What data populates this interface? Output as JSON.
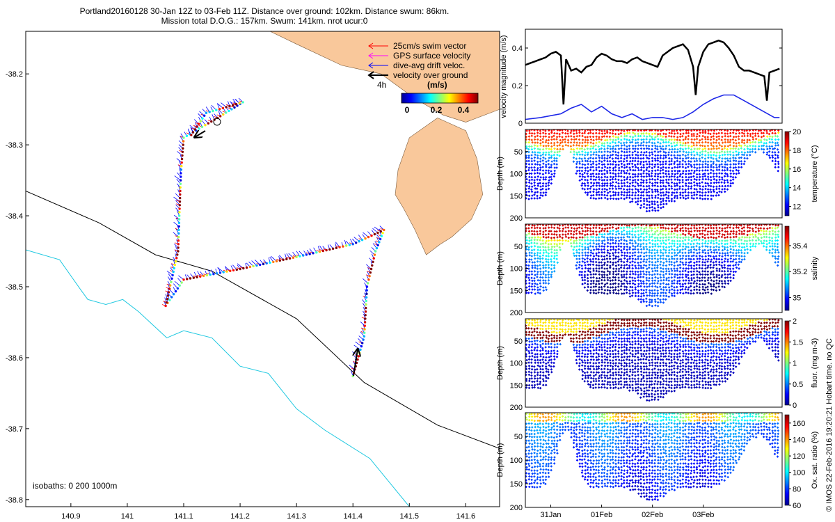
{
  "title_line1": "Portland20160128 30-Jan 12Z to 03-Feb 11Z. Distance over ground: 102km. Distance swum: 86km.",
  "title_line2": "Mission total D.O.G.: 157km. Swum: 141km. nrot ucur:0",
  "credit": "© IMOS 22-Feb-2016 19:20:21 Hobart time. no QC",
  "colors": {
    "land": "#F9C89B",
    "isobath_200": "#000000",
    "isobath_1000": "#1EC8E0",
    "swim": "#FF0000",
    "gps": "#FF00FF",
    "drift": "#0000FF",
    "vog": "#000000",
    "speed_line": "#000000",
    "drift_line": "#1E28E8"
  },
  "chart_data": [
    {
      "type": "scatter",
      "name": "glider track map",
      "xlim": [
        140.82,
        141.66
      ],
      "ylim": [
        -38.81,
        -38.14
      ],
      "xticks": [
        "140.9",
        "141",
        "141.1",
        "141.2",
        "141.3",
        "141.4",
        "141.5",
        "141.6"
      ],
      "yticks": [
        "-38.2",
        "-38.3",
        "-38.4",
        "-38.5",
        "-38.6",
        "-38.7",
        "-38.8"
      ],
      "legend": {
        "swim": "25cm/s swim vector",
        "gps": "GPS surface velocity",
        "drift": "dive-avg drift veloc.",
        "vog": "velocity over ground",
        "vog_note": "4h",
        "cbar_label": "(m/s)",
        "cbar_ticks": [
          "0",
          "0.2",
          "0.4"
        ]
      },
      "isobath_note": "isobaths: 0   200  1000m",
      "track": [
        [
          141.4,
          -38.626
        ],
        [
          141.42,
          -38.57
        ],
        [
          141.425,
          -38.5
        ],
        [
          141.44,
          -38.45
        ],
        [
          141.455,
          -38.42
        ],
        [
          141.4,
          -38.44
        ],
        [
          141.3,
          -38.458
        ],
        [
          141.2,
          -38.475
        ],
        [
          141.1,
          -38.49
        ],
        [
          141.068,
          -38.527
        ],
        [
          141.09,
          -38.45
        ],
        [
          141.095,
          -38.34
        ],
        [
          141.1,
          -38.29
        ],
        [
          141.16,
          -38.262
        ],
        [
          141.205,
          -38.24
        ],
        [
          141.14,
          -38.255
        ],
        [
          141.11,
          -38.29
        ]
      ],
      "isobath_200": [
        [
          140.82,
          -38.365
        ],
        [
          140.95,
          -38.41
        ],
        [
          141.05,
          -38.455
        ],
        [
          141.15,
          -38.478
        ],
        [
          141.3,
          -38.545
        ],
        [
          141.42,
          -38.635
        ],
        [
          141.55,
          -38.695
        ],
        [
          141.66,
          -38.728
        ]
      ],
      "isobath_1000": [
        [
          140.82,
          -38.448
        ],
        [
          140.88,
          -38.462
        ],
        [
          140.918,
          -38.505
        ],
        [
          140.93,
          -38.518
        ],
        [
          140.962,
          -38.525
        ],
        [
          140.992,
          -38.518
        ],
        [
          141.02,
          -38.535
        ],
        [
          141.07,
          -38.572
        ],
        [
          141.1,
          -38.562
        ],
        [
          141.15,
          -38.572
        ],
        [
          141.2,
          -38.612
        ],
        [
          141.25,
          -38.622
        ],
        [
          141.3,
          -38.672
        ],
        [
          141.35,
          -38.702
        ],
        [
          141.43,
          -38.742
        ],
        [
          141.5,
          -38.81
        ]
      ],
      "coast": [
        [
          141.253,
          -38.14
        ],
        [
          141.3,
          -38.158
        ],
        [
          141.38,
          -38.188
        ],
        [
          141.45,
          -38.2
        ],
        [
          141.51,
          -38.235
        ],
        [
          141.56,
          -38.258
        ],
        [
          141.6,
          -38.268
        ],
        [
          141.66,
          -38.25
        ],
        [
          141.66,
          -38.14
        ]
      ],
      "cape": [
        [
          141.55,
          -38.262
        ],
        [
          141.5,
          -38.29
        ],
        [
          141.48,
          -38.335
        ],
        [
          141.475,
          -38.37
        ],
        [
          141.49,
          -38.39
        ],
        [
          141.51,
          -38.42
        ],
        [
          141.53,
          -38.455
        ],
        [
          141.555,
          -38.44
        ],
        [
          141.575,
          -38.43
        ],
        [
          141.61,
          -38.405
        ],
        [
          141.63,
          -38.37
        ],
        [
          141.62,
          -38.32
        ],
        [
          141.6,
          -38.28
        ]
      ]
    },
    {
      "type": "line",
      "name": "velocity magnitude",
      "ylabel": "velocity magnitude (m/s)",
      "xlim": [
        0,
        5.05
      ],
      "ylim": [
        0,
        0.5
      ],
      "yticks": [
        "0",
        "0.2",
        "0.4"
      ],
      "series": [
        {
          "name": "velocity over ground",
          "x": [
            0,
            0.1,
            0.2,
            0.3,
            0.4,
            0.5,
            0.6,
            0.7,
            0.75,
            0.8,
            0.9,
            1.0,
            1.1,
            1.2,
            1.3,
            1.4,
            1.5,
            1.6,
            1.7,
            1.8,
            1.9,
            2.0,
            2.05,
            2.1,
            2.2,
            2.3,
            2.4,
            2.5,
            2.6,
            2.7,
            2.8,
            2.9,
            3.0,
            3.1,
            3.2,
            3.3,
            3.35,
            3.4,
            3.5,
            3.6,
            3.7,
            3.8,
            3.9,
            4.0,
            4.1,
            4.2,
            4.3,
            4.4,
            4.5,
            4.6,
            4.7,
            4.75,
            4.8,
            4.9,
            5.0
          ],
          "values": [
            0.31,
            0.32,
            0.33,
            0.34,
            0.35,
            0.37,
            0.38,
            0.36,
            0.1,
            0.34,
            0.28,
            0.29,
            0.27,
            0.3,
            0.31,
            0.35,
            0.37,
            0.36,
            0.34,
            0.33,
            0.33,
            0.32,
            0.33,
            0.34,
            0.35,
            0.33,
            0.32,
            0.31,
            0.3,
            0.36,
            0.38,
            0.4,
            0.41,
            0.42,
            0.39,
            0.3,
            0.15,
            0.3,
            0.38,
            0.42,
            0.43,
            0.44,
            0.43,
            0.4,
            0.36,
            0.3,
            0.28,
            0.28,
            0.27,
            0.26,
            0.25,
            0.12,
            0.27,
            0.28,
            0.29
          ]
        },
        {
          "name": "dive-avg drift",
          "x": [
            0,
            0.3,
            0.5,
            0.7,
            0.9,
            1.1,
            1.3,
            1.5,
            1.7,
            1.9,
            2.1,
            2.3,
            2.5,
            2.7,
            2.9,
            3.1,
            3.3,
            3.5,
            3.7,
            3.9,
            4.1,
            4.3,
            4.5,
            4.7,
            4.9,
            5.0
          ],
          "values": [
            0.02,
            0.03,
            0.04,
            0.05,
            0.08,
            0.1,
            0.06,
            0.09,
            0.05,
            0.03,
            0.05,
            0.02,
            0.03,
            0.03,
            0.02,
            0.03,
            0.06,
            0.1,
            0.13,
            0.15,
            0.15,
            0.12,
            0.09,
            0.06,
            0.03,
            0.03
          ]
        }
      ]
    },
    {
      "type": "scatter",
      "name": "temperature section",
      "ylabel": "Depth (m)",
      "cbar_label": "temperature (°C)",
      "yticks": [
        "50",
        "100",
        "150",
        "200"
      ],
      "cbar_ticks": [
        "12",
        "14",
        "16",
        "18",
        "20"
      ],
      "range": [
        11,
        20
      ]
    },
    {
      "type": "scatter",
      "name": "salinity section",
      "ylabel": "Depth (m)",
      "cbar_label": "salinity",
      "yticks": [
        "50",
        "100",
        "150",
        "200"
      ],
      "cbar_ticks": [
        "35",
        "35.2",
        "35.4"
      ],
      "range": [
        34.9,
        35.55
      ]
    },
    {
      "type": "scatter",
      "name": "fluorescence section",
      "ylabel": "Depth (m)",
      "cbar_label": "fluor. (mg m-3)",
      "yticks": [
        "50",
        "100",
        "150",
        "200"
      ],
      "cbar_ticks": [
        "0",
        "0.5",
        "1",
        "1.5",
        "2"
      ],
      "range": [
        0,
        2
      ]
    },
    {
      "type": "scatter",
      "name": "oxygen section",
      "ylabel": "Depth (m)",
      "cbar_label": "Ox. sat. ratio (%)",
      "yticks": [
        "50",
        "100",
        "150",
        "200"
      ],
      "cbar_ticks": [
        "60",
        "80",
        "100",
        "120",
        "140",
        "160"
      ],
      "range": [
        60,
        170
      ],
      "xticks": [
        "31Jan",
        "01Feb",
        "02Feb",
        "03Feb"
      ],
      "xtick_positions": [
        0.5,
        1.5,
        2.5,
        3.5
      ]
    }
  ]
}
